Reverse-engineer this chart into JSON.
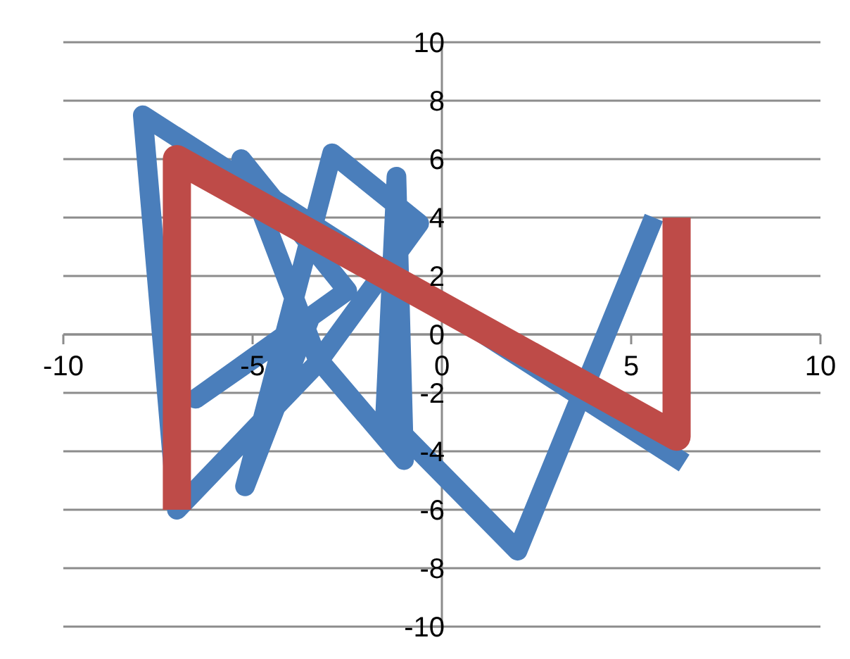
{
  "chart_data": {
    "type": "line",
    "xlim": [
      -10,
      10
    ],
    "ylim": [
      -10,
      10
    ],
    "xticks": [
      -10,
      -5,
      0,
      5,
      10
    ],
    "yticks": [
      -10,
      -8,
      -6,
      -4,
      -2,
      0,
      2,
      4,
      6,
      8,
      10
    ],
    "grid": "y",
    "marker": "none",
    "line_style": "solid",
    "series": [
      {
        "color": "#4a7ebb",
        "x": [
          5.6,
          2,
          -1.5,
          -1.2,
          -1,
          -3.3,
          -5.3,
          -2.5,
          -6.5,
          -3.5,
          -5.2,
          -2.9,
          -0.6,
          -3.3,
          -7,
          -7.9,
          6.4
        ],
        "values": [
          4,
          -7.4,
          -2.8,
          5.4,
          -4.3,
          -0.8,
          6,
          1.5,
          -2.2,
          0.5,
          -5.2,
          6.2,
          3.8,
          -1,
          -6,
          7.5,
          -4.4
        ]
      },
      {
        "color": "#be4b48",
        "x": [
          -7,
          -7,
          6.2,
          6.2
        ],
        "values": [
          -6,
          6,
          -3.5,
          4
        ]
      }
    ]
  }
}
